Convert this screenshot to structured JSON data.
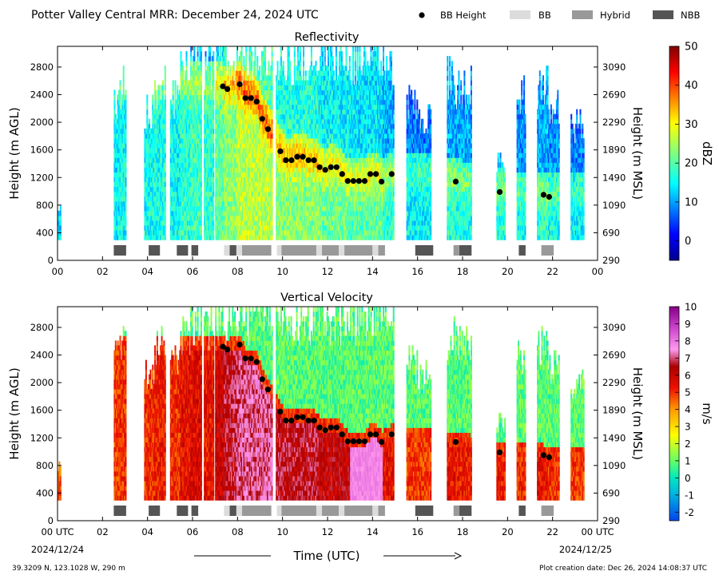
{
  "header": {
    "title": "Potter Valley Central MRR:  December 24, 2024 UTC",
    "legend": [
      {
        "label": "BB Height",
        "kind": "dot",
        "color": "#000000"
      },
      {
        "label": "BB",
        "kind": "box",
        "color": "#dcdcdc"
      },
      {
        "label": "Hybrid",
        "kind": "box",
        "color": "#999999"
      },
      {
        "label": "NBB",
        "kind": "box",
        "color": "#555555"
      }
    ]
  },
  "footer": {
    "xlabel": "Time (UTC)",
    "start_date": "2024/12/24",
    "end_date": "2024/12/25",
    "location": "39.3209 N, 123.1028 W, 290 m",
    "created": "Plot creation date: Dec 26, 2024 14:08:37 UTC"
  },
  "chart_data": [
    {
      "type": "heatmap",
      "title": "Reflectivity",
      "ylabel": "Height (m AGL)",
      "y2label": "Height (m MSL)",
      "colorbar_label": "dBZ",
      "colormap": "jet",
      "clim": [
        -5,
        50
      ],
      "colorbar_ticks": [
        0,
        10,
        20,
        30,
        40,
        50
      ],
      "xlim": [
        0,
        24
      ],
      "x_ticks": [
        "00",
        "02",
        "04",
        "06",
        "08",
        "10",
        "12",
        "14",
        "16",
        "18",
        "20",
        "22",
        "00"
      ],
      "ylim": [
        0,
        3100
      ],
      "y_ticks": [
        0,
        400,
        800,
        1200,
        1600,
        2000,
        2400,
        2800
      ],
      "y2_ticks": [
        290,
        690,
        1090,
        1490,
        1890,
        2290,
        2690,
        3090
      ]
    },
    {
      "type": "heatmap",
      "title": "Vertical Velocity",
      "ylabel": "Height (m AGL)",
      "y2label": "Height (m MSL)",
      "colorbar_label": "m/s",
      "colormap": "velocity",
      "clim": [
        -2.5,
        10
      ],
      "colorbar_ticks": [
        -2,
        -1,
        0,
        1,
        2,
        3,
        4,
        5,
        6,
        7,
        8,
        9,
        10
      ],
      "xlim": [
        0,
        24
      ],
      "x_ticks": [
        "00 UTC",
        "02",
        "04",
        "06",
        "08",
        "10",
        "12",
        "14",
        "16",
        "18",
        "20",
        "22",
        "00 UTC"
      ],
      "ylim": [
        0,
        3100
      ],
      "y_ticks": [
        0,
        400,
        800,
        1200,
        1600,
        2000,
        2400,
        2800
      ],
      "y2_ticks": [
        290,
        690,
        1090,
        1490,
        1890,
        2290,
        2690,
        3090
      ]
    }
  ],
  "bb_heights": [
    {
      "t": 7.35,
      "h": 2520
    },
    {
      "t": 7.55,
      "h": 2480
    },
    {
      "t": 8.1,
      "h": 2550
    },
    {
      "t": 8.35,
      "h": 2350
    },
    {
      "t": 8.6,
      "h": 2350
    },
    {
      "t": 8.85,
      "h": 2300
    },
    {
      "t": 9.1,
      "h": 2050
    },
    {
      "t": 9.35,
      "h": 1900
    },
    {
      "t": 9.9,
      "h": 1580
    },
    {
      "t": 10.15,
      "h": 1450
    },
    {
      "t": 10.4,
      "h": 1450
    },
    {
      "t": 10.65,
      "h": 1500
    },
    {
      "t": 10.9,
      "h": 1500
    },
    {
      "t": 11.15,
      "h": 1450
    },
    {
      "t": 11.4,
      "h": 1450
    },
    {
      "t": 11.65,
      "h": 1350
    },
    {
      "t": 11.9,
      "h": 1310
    },
    {
      "t": 12.15,
      "h": 1350
    },
    {
      "t": 12.4,
      "h": 1350
    },
    {
      "t": 12.65,
      "h": 1250
    },
    {
      "t": 12.9,
      "h": 1150
    },
    {
      "t": 13.15,
      "h": 1150
    },
    {
      "t": 13.4,
      "h": 1150
    },
    {
      "t": 13.65,
      "h": 1150
    },
    {
      "t": 13.9,
      "h": 1250
    },
    {
      "t": 14.15,
      "h": 1250
    },
    {
      "t": 14.4,
      "h": 1140
    },
    {
      "t": 14.85,
      "h": 1250
    },
    {
      "t": 17.7,
      "h": 1140
    },
    {
      "t": 19.65,
      "h": 990
    },
    {
      "t": 21.6,
      "h": 950
    },
    {
      "t": 21.85,
      "h": 920
    }
  ],
  "bb_type_segments": [
    {
      "t0": 2.5,
      "t1": 3.05,
      "type": "NBB"
    },
    {
      "t0": 4.05,
      "t1": 4.55,
      "type": "NBB"
    },
    {
      "t0": 5.3,
      "t1": 5.8,
      "type": "NBB"
    },
    {
      "t0": 5.95,
      "t1": 6.25,
      "type": "NBB"
    },
    {
      "t0": 7.4,
      "t1": 7.65,
      "type": "BB"
    },
    {
      "t0": 7.65,
      "t1": 7.95,
      "type": "NBB"
    },
    {
      "t0": 7.95,
      "t1": 8.2,
      "type": "BB"
    },
    {
      "t0": 8.2,
      "t1": 9.5,
      "type": "Hybrid"
    },
    {
      "t0": 9.75,
      "t1": 9.95,
      "type": "BB"
    },
    {
      "t0": 9.95,
      "t1": 11.5,
      "type": "Hybrid"
    },
    {
      "t0": 11.5,
      "t1": 11.75,
      "type": "BB"
    },
    {
      "t0": 11.75,
      "t1": 12.5,
      "type": "Hybrid"
    },
    {
      "t0": 12.5,
      "t1": 12.75,
      "type": "BB"
    },
    {
      "t0": 12.75,
      "t1": 14.0,
      "type": "Hybrid"
    },
    {
      "t0": 14.0,
      "t1": 14.25,
      "type": "BB"
    },
    {
      "t0": 14.25,
      "t1": 14.55,
      "type": "Hybrid"
    },
    {
      "t0": 15.9,
      "t1": 16.7,
      "type": "NBB"
    },
    {
      "t0": 17.6,
      "t1": 17.85,
      "type": "Hybrid"
    },
    {
      "t0": 17.85,
      "t1": 18.4,
      "type": "NBB"
    },
    {
      "t0": 20.5,
      "t1": 20.8,
      "type": "NBB"
    },
    {
      "t0": 21.5,
      "t1": 22.05,
      "type": "Hybrid"
    }
  ]
}
